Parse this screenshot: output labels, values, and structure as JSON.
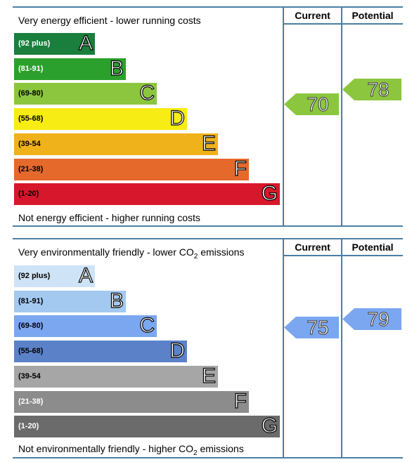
{
  "energy": {
    "header_current": "Current",
    "header_potential": "Potential",
    "top_label": "Very energy efficient - lower running costs",
    "bottom_label": "Not energy efficient - higher running costs",
    "bands": [
      {
        "range": "(92 plus)",
        "letter": "A",
        "color": "#1a7f3c"
      },
      {
        "range": "(81-91)",
        "letter": "B",
        "color": "#2ca02c"
      },
      {
        "range": "(69-80)",
        "letter": "C",
        "color": "#8cc63f"
      },
      {
        "range": "(55-68)",
        "letter": "D",
        "color": "#f7ec13"
      },
      {
        "range": "(39-54",
        "letter": "E",
        "color": "#f0b21a"
      },
      {
        "range": "(21-38)",
        "letter": "F",
        "color": "#e6692c"
      },
      {
        "range": "(1-20)",
        "letter": "G",
        "color": "#d7172b"
      }
    ],
    "current": {
      "value": "70",
      "color": "#8cc63f"
    },
    "potential": {
      "value": "78",
      "color": "#8cc63f"
    }
  },
  "environment": {
    "header_current": "Current",
    "header_potential": "Potential",
    "top_label_pre": "Very environmentally friendly - lower CO",
    "top_label_sub": "2",
    "top_label_post": " emissions",
    "bottom_label_pre": "Not environmentally friendly - higher CO",
    "bottom_label_sub": "2",
    "bottom_label_post": " emissions",
    "bands": [
      {
        "range": "(92 plus)",
        "letter": "A",
        "color": "#cfe3f6"
      },
      {
        "range": "(81-91)",
        "letter": "B",
        "color": "#a3c9f0"
      },
      {
        "range": "(69-80)",
        "letter": "C",
        "color": "#7ba7f0"
      },
      {
        "range": "(55-68)",
        "letter": "D",
        "color": "#5b82c9"
      },
      {
        "range": "(39-54",
        "letter": "E",
        "color": "#a6a6a6"
      },
      {
        "range": "(21-38)",
        "letter": "F",
        "color": "#8c8c8c"
      },
      {
        "range": "(1-20)",
        "letter": "G",
        "color": "#6b6b6b"
      }
    ],
    "current": {
      "value": "75",
      "color": "#7ba7f0"
    },
    "potential": {
      "value": "79",
      "color": "#7ba7f0"
    }
  }
}
